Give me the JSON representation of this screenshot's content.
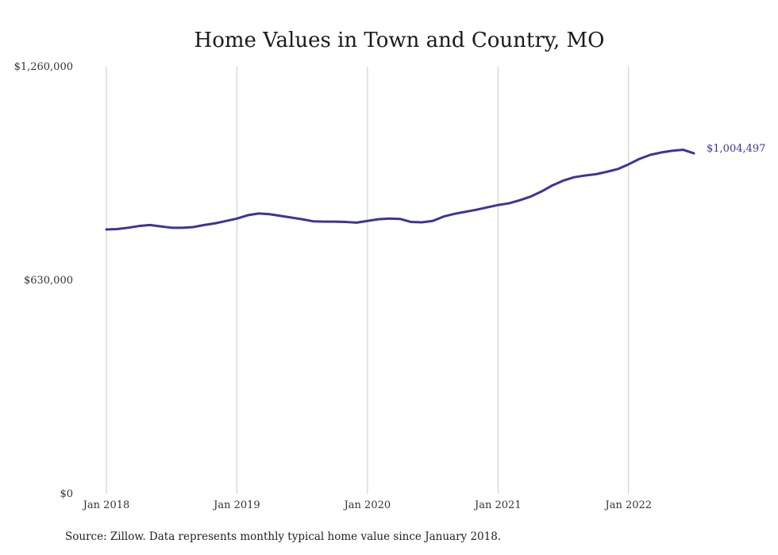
{
  "chart_data": {
    "type": "line",
    "title": "Home Values in Town and Country, MO",
    "xlabel": "",
    "ylabel": "",
    "ylim": [
      0,
      1260000
    ],
    "y_ticks": [
      {
        "value": 1260000,
        "label": "$1,260,000"
      },
      {
        "value": 630000,
        "label": "$630,000"
      },
      {
        "value": 0,
        "label": "$0"
      }
    ],
    "x_ticks": [
      {
        "index": 0,
        "label": "Jan 2018"
      },
      {
        "index": 12,
        "label": "Jan 2019"
      },
      {
        "index": 24,
        "label": "Jan 2020"
      },
      {
        "index": 36,
        "label": "Jan 2021"
      },
      {
        "index": 48,
        "label": "Jan 2022"
      }
    ],
    "grid": "vertical",
    "color": "#3b3598",
    "series": [
      {
        "x": [
          "2018-01",
          "2018-02",
          "2018-03",
          "2018-04",
          "2018-05",
          "2018-06",
          "2018-07",
          "2018-08",
          "2018-09",
          "2018-10",
          "2018-11",
          "2018-12",
          "2019-01",
          "2019-02",
          "2019-03",
          "2019-04",
          "2019-05",
          "2019-06",
          "2019-07",
          "2019-08",
          "2019-09",
          "2019-10",
          "2019-11",
          "2019-12",
          "2020-01",
          "2020-02",
          "2020-03",
          "2020-04",
          "2020-05",
          "2020-06",
          "2020-07",
          "2020-08",
          "2020-09",
          "2020-10",
          "2020-11",
          "2020-12",
          "2021-01",
          "2021-02",
          "2021-03",
          "2021-04",
          "2021-05",
          "2021-06",
          "2021-07",
          "2021-08",
          "2021-09",
          "2021-10",
          "2021-11",
          "2021-12",
          "2022-01",
          "2022-02",
          "2022-03",
          "2022-04",
          "2022-05",
          "2022-06",
          "2022-07"
        ],
        "values": [
          780000,
          781000,
          785000,
          790000,
          793000,
          789000,
          785000,
          785000,
          787000,
          793000,
          798000,
          805000,
          812000,
          822000,
          827000,
          825000,
          820000,
          815000,
          810000,
          804000,
          803000,
          803000,
          802000,
          800000,
          805000,
          810000,
          812000,
          811000,
          802000,
          801000,
          805000,
          818000,
          826000,
          832000,
          838000,
          845000,
          852000,
          857000,
          866000,
          877000,
          892000,
          910000,
          924000,
          934000,
          939000,
          943000,
          950000,
          958000,
          972000,
          988000,
          1000000,
          1007000,
          1012000,
          1015000,
          1004497
        ],
        "end_label": "$1,004,497"
      }
    ]
  },
  "source_text": "Source: Zillow. Data represents monthly typical home value since January 2018."
}
